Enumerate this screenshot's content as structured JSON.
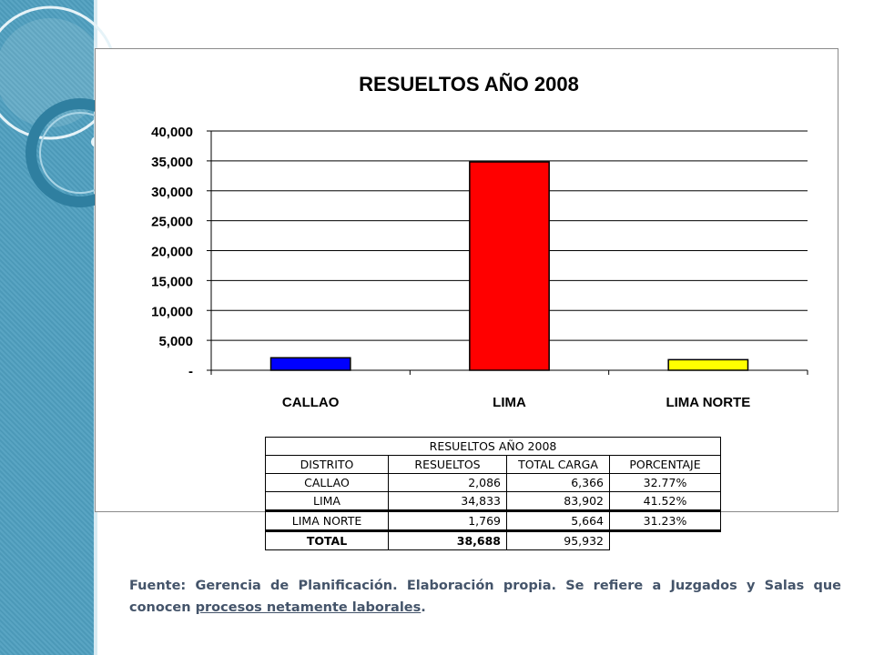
{
  "slide": {
    "colors": {
      "sidebar": "#4f9fbf",
      "text": "#44546a"
    }
  },
  "chart_data": {
    "type": "bar",
    "title": "RESUELTOS AÑO 2008",
    "categories": [
      "CALLAO",
      "LIMA",
      "LIMA NORTE"
    ],
    "values": [
      2086,
      34833,
      1769
    ],
    "colors": [
      "#0000ff",
      "#ff0000",
      "#ffff00"
    ],
    "ylim": [
      0,
      40000
    ],
    "yticks": [
      "-",
      "5,000",
      "10,000",
      "15,000",
      "20,000",
      "25,000",
      "30,000",
      "35,000",
      "40,000"
    ],
    "grid": true,
    "legend": "none"
  },
  "table": {
    "title": "RESUELTOS AÑO 2008",
    "headers": [
      "DISTRITO",
      "RESUELTOS",
      "TOTAL CARGA",
      "PORCENTAJE"
    ],
    "rows": [
      [
        "CALLAO",
        "2,086",
        "6,366",
        "32.77%"
      ],
      [
        "LIMA",
        "34,833",
        "83,902",
        "41.52%"
      ],
      [
        "LIMA NORTE",
        "1,769",
        "5,664",
        "31.23%"
      ]
    ],
    "total": [
      "TOTAL",
      "38,688",
      "95,932"
    ]
  },
  "source": {
    "prefix": "Fuente: Gerencia de Planificación. Elaboración propia. Se refiere a Juzgados y Salas que conocen ",
    "link": "procesos netamente laborales",
    "suffix": "."
  }
}
